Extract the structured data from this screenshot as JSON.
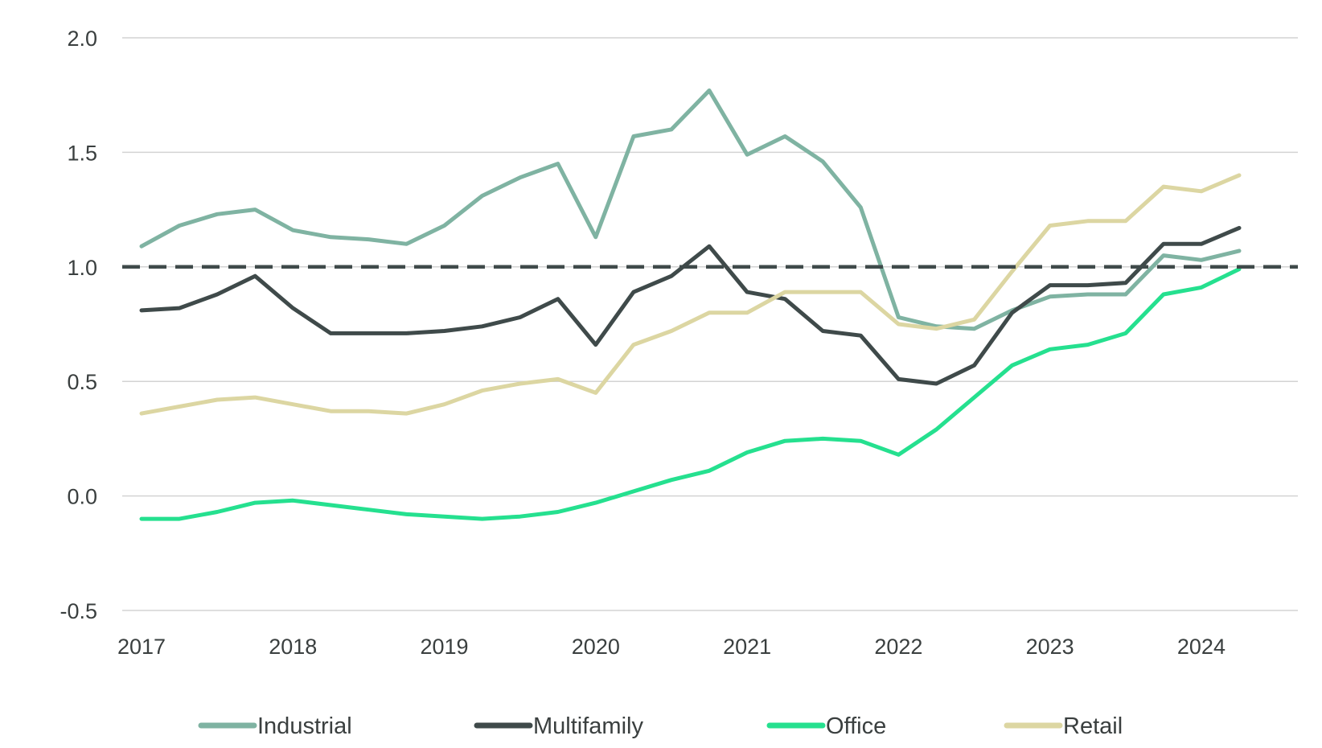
{
  "chart_data": {
    "type": "line",
    "title": "",
    "xlabel": "",
    "ylabel": "",
    "ylim": [
      -0.5,
      2.0
    ],
    "xlim": [
      2017,
      2024.4
    ],
    "y_ticks": [
      {
        "value": 2.0,
        "label": "2.0"
      },
      {
        "value": 1.5,
        "label": "1.5"
      },
      {
        "value": 1.0,
        "label": "1.0"
      },
      {
        "value": 0.5,
        "label": "0.5"
      },
      {
        "value": 0.0,
        "label": "0.0"
      },
      {
        "value": -0.5,
        "label": "-0.5"
      }
    ],
    "x_ticks": [
      {
        "value": 2017,
        "label": "2017"
      },
      {
        "value": 2018,
        "label": "2018"
      },
      {
        "value": 2019,
        "label": "2019"
      },
      {
        "value": 2020,
        "label": "2020"
      },
      {
        "value": 2021,
        "label": "2021"
      },
      {
        "value": 2022,
        "label": "2022"
      },
      {
        "value": 2023,
        "label": "2023"
      },
      {
        "value": 2024,
        "label": "2024"
      }
    ],
    "grid": true,
    "reference_line": {
      "value": 1.0,
      "color": "#3f4a4a",
      "style": "dashed"
    },
    "legend_position": "bottom",
    "x": [
      2017.0,
      2017.25,
      2017.5,
      2017.75,
      2018.0,
      2018.25,
      2018.5,
      2018.75,
      2019.0,
      2019.25,
      2019.5,
      2019.75,
      2020.0,
      2020.25,
      2020.5,
      2020.75,
      2021.0,
      2021.25,
      2021.5,
      2021.75,
      2022.0,
      2022.25,
      2022.5,
      2022.75,
      2023.0,
      2023.25,
      2023.5,
      2023.75,
      2024.0,
      2024.25
    ],
    "series": [
      {
        "name": "Industrial",
        "color": "#7fb3a2",
        "values": [
          1.09,
          1.18,
          1.23,
          1.25,
          1.16,
          1.13,
          1.12,
          1.1,
          1.18,
          1.31,
          1.39,
          1.45,
          1.13,
          1.57,
          1.6,
          1.77,
          1.49,
          1.57,
          1.46,
          1.26,
          0.78,
          0.74,
          0.73,
          0.81,
          0.87,
          0.88,
          0.88,
          1.05,
          1.03,
          1.07
        ]
      },
      {
        "name": "Multifamily",
        "color": "#3f4a4a",
        "values": [
          0.81,
          0.82,
          0.88,
          0.96,
          0.82,
          0.71,
          0.71,
          0.71,
          0.72,
          0.74,
          0.78,
          0.86,
          0.66,
          0.89,
          0.96,
          1.09,
          0.89,
          0.86,
          0.72,
          0.7,
          0.51,
          0.49,
          0.57,
          0.8,
          0.92,
          0.92,
          0.93,
          1.1,
          1.1,
          1.17
        ]
      },
      {
        "name": "Office",
        "color": "#25e08f",
        "values": [
          -0.1,
          -0.1,
          -0.07,
          -0.03,
          -0.02,
          -0.04,
          -0.06,
          -0.08,
          -0.09,
          -0.1,
          -0.09,
          -0.07,
          -0.03,
          0.02,
          0.07,
          0.11,
          0.19,
          0.24,
          0.25,
          0.24,
          0.18,
          0.29,
          0.43,
          0.57,
          0.64,
          0.66,
          0.71,
          0.88,
          0.91,
          0.99
        ]
      },
      {
        "name": "Retail",
        "color": "#dcd6a2",
        "values": [
          0.36,
          0.39,
          0.42,
          0.43,
          0.4,
          0.37,
          0.37,
          0.36,
          0.4,
          0.46,
          0.49,
          0.51,
          0.45,
          0.66,
          0.72,
          0.8,
          0.8,
          0.89,
          0.89,
          0.89,
          0.75,
          0.73,
          0.77,
          0.98,
          1.18,
          1.2,
          1.2,
          1.35,
          1.33,
          1.4
        ]
      }
    ]
  }
}
